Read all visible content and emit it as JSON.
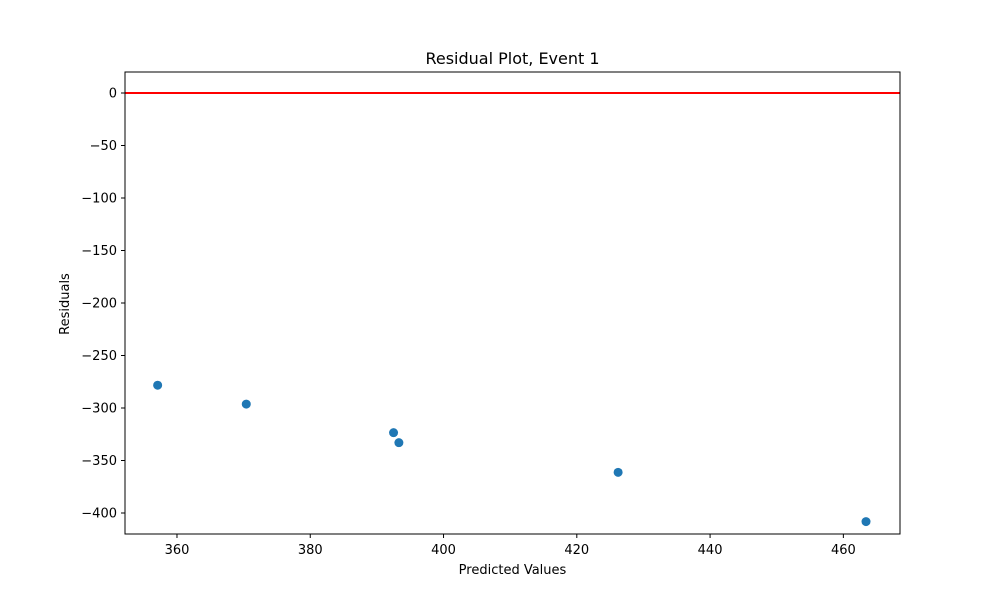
{
  "chart_data": {
    "type": "scatter",
    "title": "Residual Plot, Event 1",
    "xlabel": "Predicted Values",
    "ylabel": "Residuals",
    "xlim": [
      352.2,
      468.5
    ],
    "ylim": [
      -420,
      20
    ],
    "xticks": [
      360,
      380,
      400,
      420,
      440,
      460
    ],
    "yticks": [
      0,
      -50,
      -100,
      -150,
      -200,
      -250,
      -300,
      -350,
      -400
    ],
    "xtick_labels": [
      "360",
      "380",
      "400",
      "420",
      "440",
      "460"
    ],
    "ytick_labels": [
      "0",
      "−50",
      "−100",
      "−150",
      "−200",
      "−250",
      "−300",
      "−350",
      "−400"
    ],
    "grid": false,
    "reference_line": {
      "y": 0,
      "color": "#ff0000"
    },
    "marker_color": "#1f77b4",
    "points": [
      {
        "x": 357.1,
        "y": -278.3
      },
      {
        "x": 370.4,
        "y": -296.3
      },
      {
        "x": 392.5,
        "y": -323.5
      },
      {
        "x": 393.3,
        "y": -333.0
      },
      {
        "x": 426.2,
        "y": -361.3
      },
      {
        "x": 463.4,
        "y": -408.2
      }
    ]
  }
}
